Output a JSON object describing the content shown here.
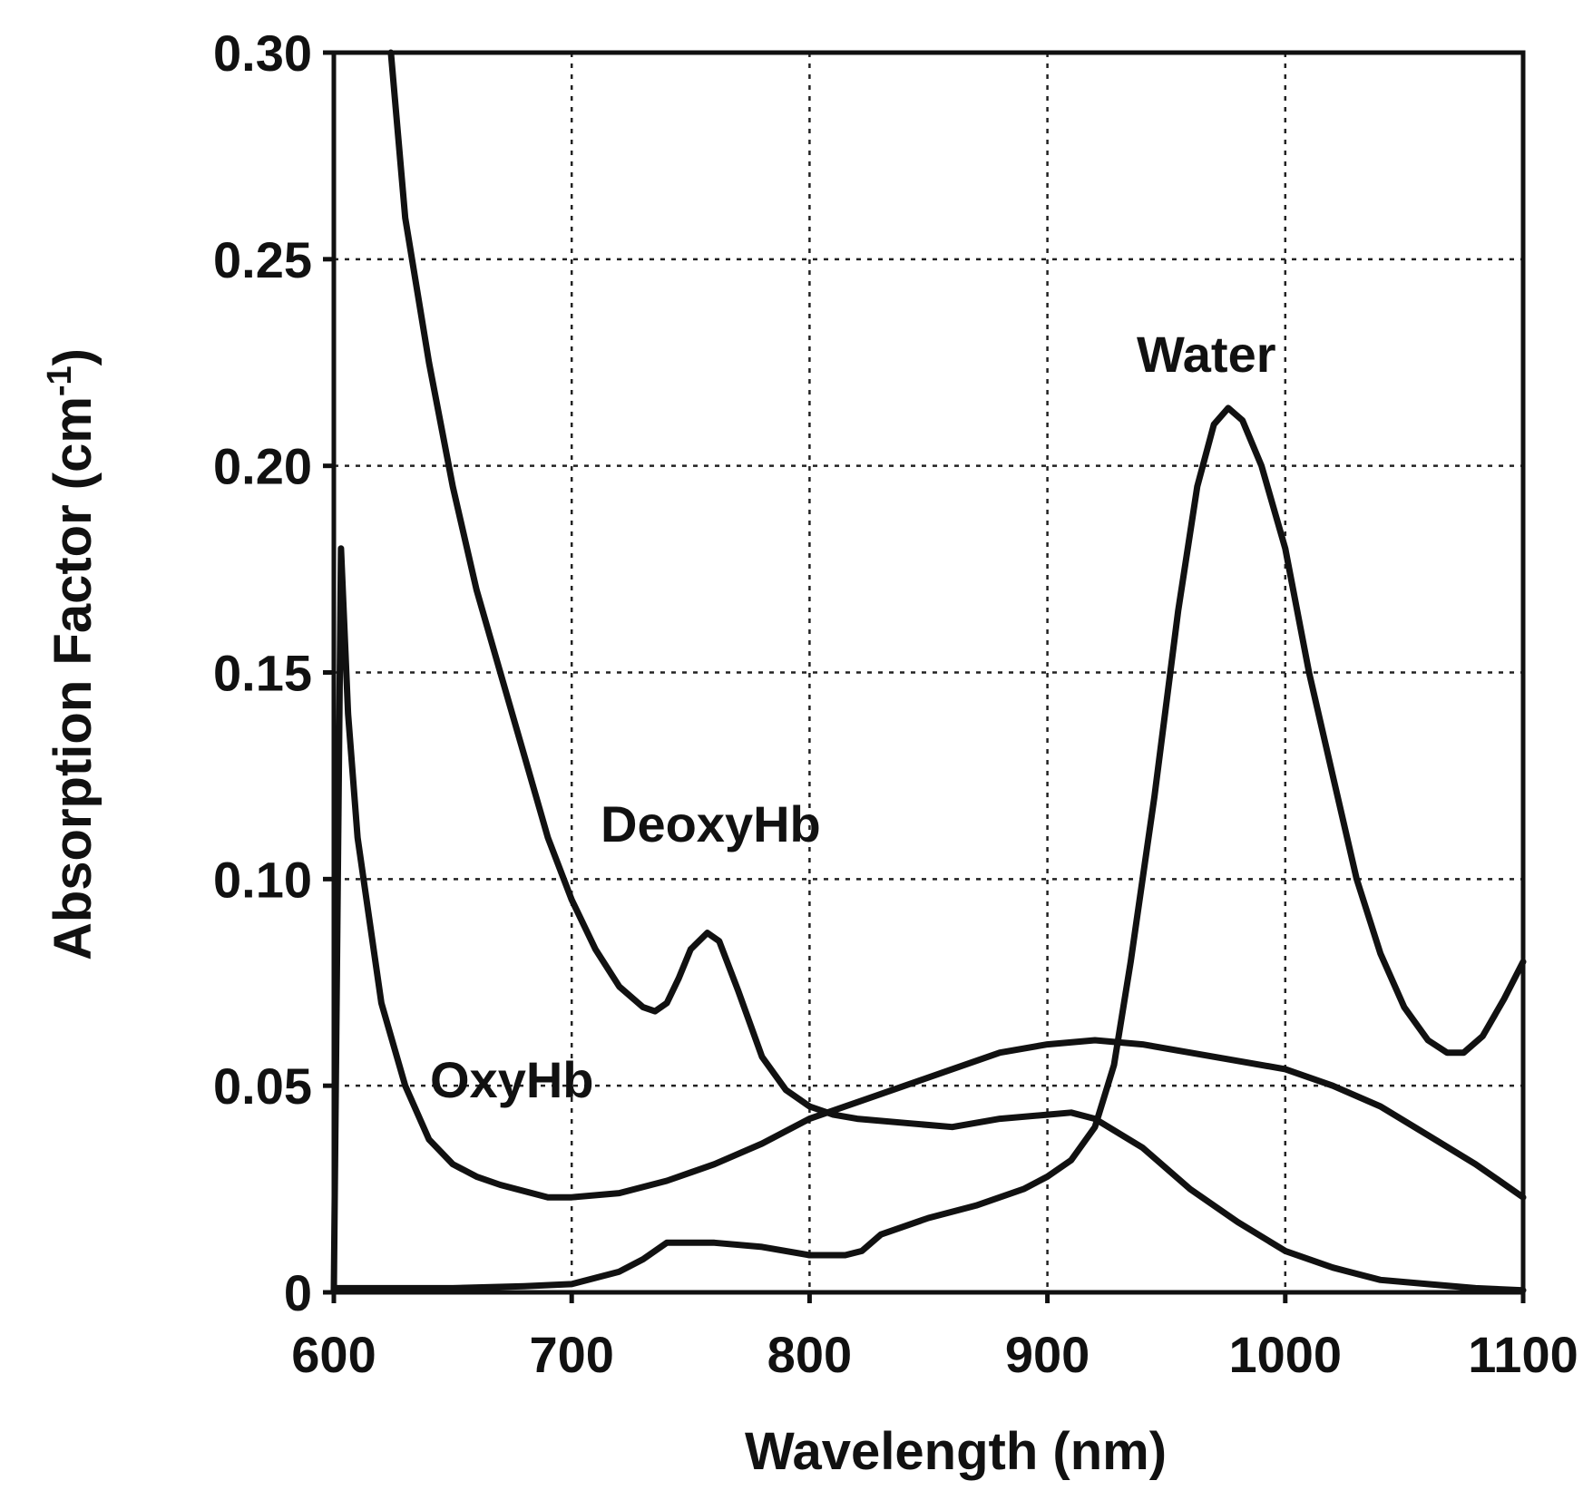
{
  "chart_data": {
    "type": "line",
    "title": "",
    "xlabel": "Wavelength (nm)",
    "ylabel": "Absorption Factor (cm-1)",
    "ylabel_parts": {
      "main": "Absorption Factor (cm",
      "sup": "-1",
      "close": ")"
    },
    "xlim": [
      600,
      1100
    ],
    "ylim": [
      0,
      0.3
    ],
    "grid": true,
    "x_ticks": [
      600,
      700,
      800,
      900,
      1000,
      1100
    ],
    "x_tick_labels": [
      "600",
      "700",
      "800",
      "900",
      "1000",
      "1100"
    ],
    "y_ticks": [
      0,
      0.05,
      0.1,
      0.15,
      0.2,
      0.25,
      0.3
    ],
    "y_tick_labels": [
      "0",
      "0.05",
      "0.10",
      "0.15",
      "0.20",
      "0.25",
      "0.30"
    ],
    "series": [
      {
        "name": "DeoxyHb",
        "label": "DeoxyHb",
        "points": [
          [
            624,
            0.3
          ],
          [
            627,
            0.28
          ],
          [
            630,
            0.26
          ],
          [
            640,
            0.225
          ],
          [
            650,
            0.195
          ],
          [
            660,
            0.17
          ],
          [
            670,
            0.15
          ],
          [
            680,
            0.13
          ],
          [
            690,
            0.11
          ],
          [
            700,
            0.095
          ],
          [
            710,
            0.083
          ],
          [
            720,
            0.074
          ],
          [
            730,
            0.069
          ],
          [
            735,
            0.068
          ],
          [
            740,
            0.07
          ],
          [
            745,
            0.076
          ],
          [
            750,
            0.083
          ],
          [
            757,
            0.087
          ],
          [
            762,
            0.085
          ],
          [
            770,
            0.073
          ],
          [
            780,
            0.057
          ],
          [
            790,
            0.049
          ],
          [
            800,
            0.045
          ],
          [
            810,
            0.043
          ],
          [
            820,
            0.042
          ],
          [
            840,
            0.041
          ],
          [
            860,
            0.04
          ],
          [
            880,
            0.042
          ],
          [
            900,
            0.043
          ],
          [
            910,
            0.0435
          ],
          [
            920,
            0.042
          ],
          [
            940,
            0.035
          ],
          [
            960,
            0.025
          ],
          [
            980,
            0.017
          ],
          [
            1000,
            0.01
          ],
          [
            1020,
            0.006
          ],
          [
            1040,
            0.003
          ],
          [
            1060,
            0.002
          ],
          [
            1080,
            0.001
          ],
          [
            1100,
            0.0005
          ]
        ]
      },
      {
        "name": "OxyHb",
        "label": "OxyHb",
        "points": [
          [
            600,
            0.0005
          ],
          [
            603,
            0.18
          ],
          [
            606,
            0.14
          ],
          [
            610,
            0.11
          ],
          [
            615,
            0.09
          ],
          [
            620,
            0.07
          ],
          [
            630,
            0.05
          ],
          [
            640,
            0.037
          ],
          [
            650,
            0.031
          ],
          [
            660,
            0.028
          ],
          [
            670,
            0.026
          ],
          [
            690,
            0.023
          ],
          [
            700,
            0.023
          ],
          [
            720,
            0.024
          ],
          [
            740,
            0.027
          ],
          [
            760,
            0.031
          ],
          [
            780,
            0.036
          ],
          [
            800,
            0.042
          ],
          [
            820,
            0.046
          ],
          [
            840,
            0.05
          ],
          [
            860,
            0.054
          ],
          [
            880,
            0.058
          ],
          [
            900,
            0.06
          ],
          [
            920,
            0.061
          ],
          [
            940,
            0.06
          ],
          [
            960,
            0.058
          ],
          [
            980,
            0.056
          ],
          [
            1000,
            0.054
          ],
          [
            1020,
            0.05
          ],
          [
            1040,
            0.045
          ],
          [
            1060,
            0.038
          ],
          [
            1080,
            0.031
          ],
          [
            1100,
            0.023
          ]
        ]
      },
      {
        "name": "Water",
        "label": "Water",
        "points": [
          [
            600,
            0.001
          ],
          [
            650,
            0.001
          ],
          [
            680,
            0.0015
          ],
          [
            700,
            0.002
          ],
          [
            720,
            0.005
          ],
          [
            730,
            0.008
          ],
          [
            740,
            0.012
          ],
          [
            760,
            0.012
          ],
          [
            780,
            0.011
          ],
          [
            800,
            0.009
          ],
          [
            815,
            0.009
          ],
          [
            822,
            0.01
          ],
          [
            830,
            0.014
          ],
          [
            850,
            0.018
          ],
          [
            870,
            0.021
          ],
          [
            890,
            0.025
          ],
          [
            900,
            0.028
          ],
          [
            910,
            0.032
          ],
          [
            920,
            0.04
          ],
          [
            928,
            0.055
          ],
          [
            935,
            0.08
          ],
          [
            945,
            0.12
          ],
          [
            955,
            0.165
          ],
          [
            963,
            0.195
          ],
          [
            970,
            0.21
          ],
          [
            976,
            0.214
          ],
          [
            982,
            0.211
          ],
          [
            990,
            0.2
          ],
          [
            1000,
            0.18
          ],
          [
            1010,
            0.15
          ],
          [
            1020,
            0.125
          ],
          [
            1030,
            0.1
          ],
          [
            1040,
            0.082
          ],
          [
            1050,
            0.069
          ],
          [
            1060,
            0.061
          ],
          [
            1068,
            0.058
          ],
          [
            1075,
            0.058
          ],
          [
            1083,
            0.062
          ],
          [
            1092,
            0.071
          ],
          [
            1100,
            0.08
          ]
        ]
      }
    ]
  }
}
